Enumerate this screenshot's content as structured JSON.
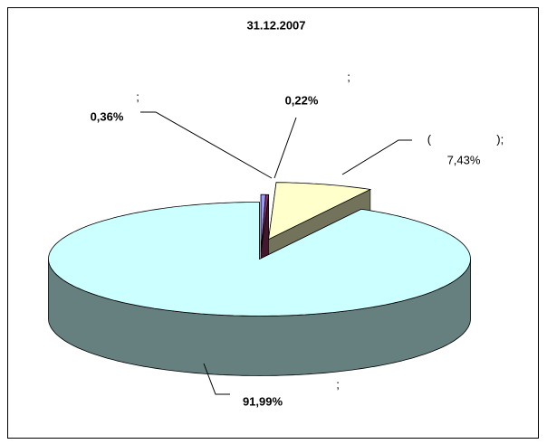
{
  "chart_data": {
    "type": "pie3d",
    "title": "31.12.2007",
    "categories": [
      ";",
      ";",
      "(                    );",
      ";"
    ],
    "values": [
      0.36,
      0.22,
      7.43,
      91.99
    ],
    "value_labels": [
      "0,36%",
      "0,22%",
      "7,43%",
      "91,99%"
    ],
    "colors": [
      "#9999ff",
      "#993366",
      "#ffffcc",
      "#ccffff"
    ]
  }
}
